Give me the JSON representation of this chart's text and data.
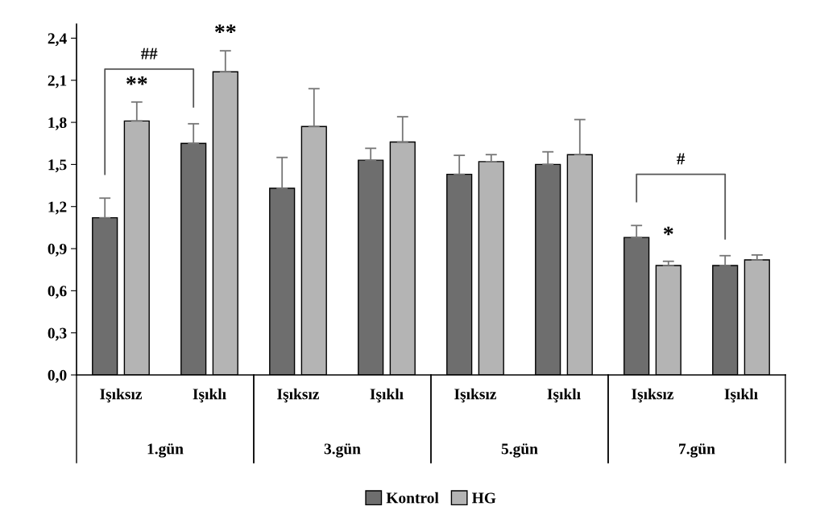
{
  "chart_data": {
    "type": "bar",
    "categories": [
      "Işıksız",
      "Işıklı",
      "Işıksız",
      "Işıklı",
      "Işıksız",
      "Işıklı",
      "Işıksız",
      "Işıklı"
    ],
    "series": [
      {
        "name": "Kontrol",
        "color": "#6e6e6e",
        "values": [
          1.12,
          1.65,
          1.33,
          1.53,
          1.43,
          1.5,
          0.98,
          0.78
        ],
        "errors": [
          0.14,
          0.14,
          0.22,
          0.085,
          0.135,
          0.09,
          0.085,
          0.07
        ]
      },
      {
        "name": "HG",
        "color": "#b4b4b4",
        "values": [
          1.81,
          2.16,
          1.77,
          1.66,
          1.52,
          1.57,
          0.78,
          0.82
        ],
        "errors": [
          0.135,
          0.15,
          0.27,
          0.18,
          0.05,
          0.25,
          0.03,
          0.035
        ]
      }
    ],
    "ylim": [
      0,
      2.5
    ],
    "yticks": [
      {
        "value": 0,
        "label": "0,0"
      },
      {
        "value": 0.3,
        "label": "0,3"
      },
      {
        "value": 0.6,
        "label": "0,6"
      },
      {
        "value": 0.9,
        "label": "0,9"
      },
      {
        "value": 1.2,
        "label": "1,2"
      },
      {
        "value": 1.5,
        "label": "1,5"
      },
      {
        "value": 1.8,
        "label": "1,8"
      },
      {
        "value": 2.1,
        "label": "2,1"
      },
      {
        "value": 2.4,
        "label": "2,4"
      }
    ],
    "annotations": [
      "1.gün",
      "3.gün",
      "5.gün",
      "7.gün",
      "##",
      "**",
      "**",
      "#",
      "*"
    ],
    "legend": "bottom",
    "grid": false
  }
}
